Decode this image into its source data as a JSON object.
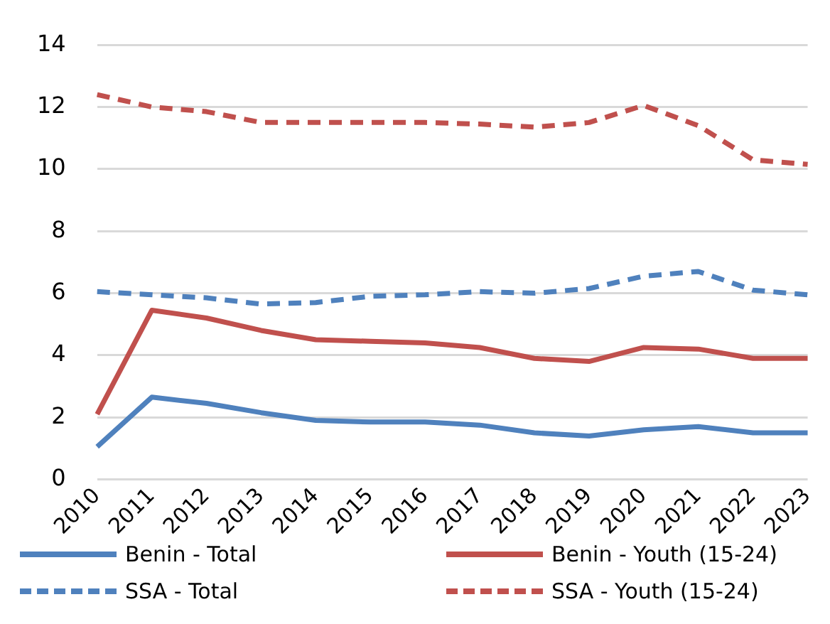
{
  "chart_data": {
    "type": "line",
    "categories": [
      "2010",
      "2011",
      "2012",
      "2013",
      "2014",
      "2015",
      "2016",
      "2017",
      "2018",
      "2019",
      "2020",
      "2021",
      "2022",
      "2023"
    ],
    "series": [
      {
        "name": "Benin - Total",
        "color": "#4f81bd",
        "line_style": "solid",
        "values": [
          1.05,
          2.65,
          2.45,
          2.15,
          1.9,
          1.85,
          1.85,
          1.75,
          1.5,
          1.4,
          1.6,
          1.7,
          1.5,
          1.5
        ]
      },
      {
        "name": "Benin - Youth (15-24)",
        "color": "#c0504d",
        "line_style": "solid",
        "values": [
          2.1,
          5.45,
          5.2,
          4.8,
          4.5,
          4.45,
          4.4,
          4.25,
          3.9,
          3.8,
          4.25,
          4.2,
          3.9,
          3.9
        ]
      },
      {
        "name": "SSA - Total",
        "color": "#4f81bd",
        "line_style": "dashed",
        "values": [
          6.05,
          5.95,
          5.85,
          5.65,
          5.7,
          5.9,
          5.95,
          6.05,
          6.0,
          6.15,
          6.55,
          6.7,
          6.1,
          5.95
        ]
      },
      {
        "name": "SSA - Youth (15-24)",
        "color": "#c0504d",
        "line_style": "dashed",
        "values": [
          12.4,
          12.0,
          11.85,
          11.5,
          11.5,
          11.5,
          11.5,
          11.45,
          11.35,
          11.5,
          12.05,
          11.4,
          10.3,
          10.15
        ]
      }
    ],
    "ylim": [
      0,
      14
    ],
    "yticks": [
      0,
      2,
      4,
      6,
      8,
      10,
      12,
      14
    ],
    "grid": "y",
    "legend": "bottom",
    "marker": "none"
  }
}
